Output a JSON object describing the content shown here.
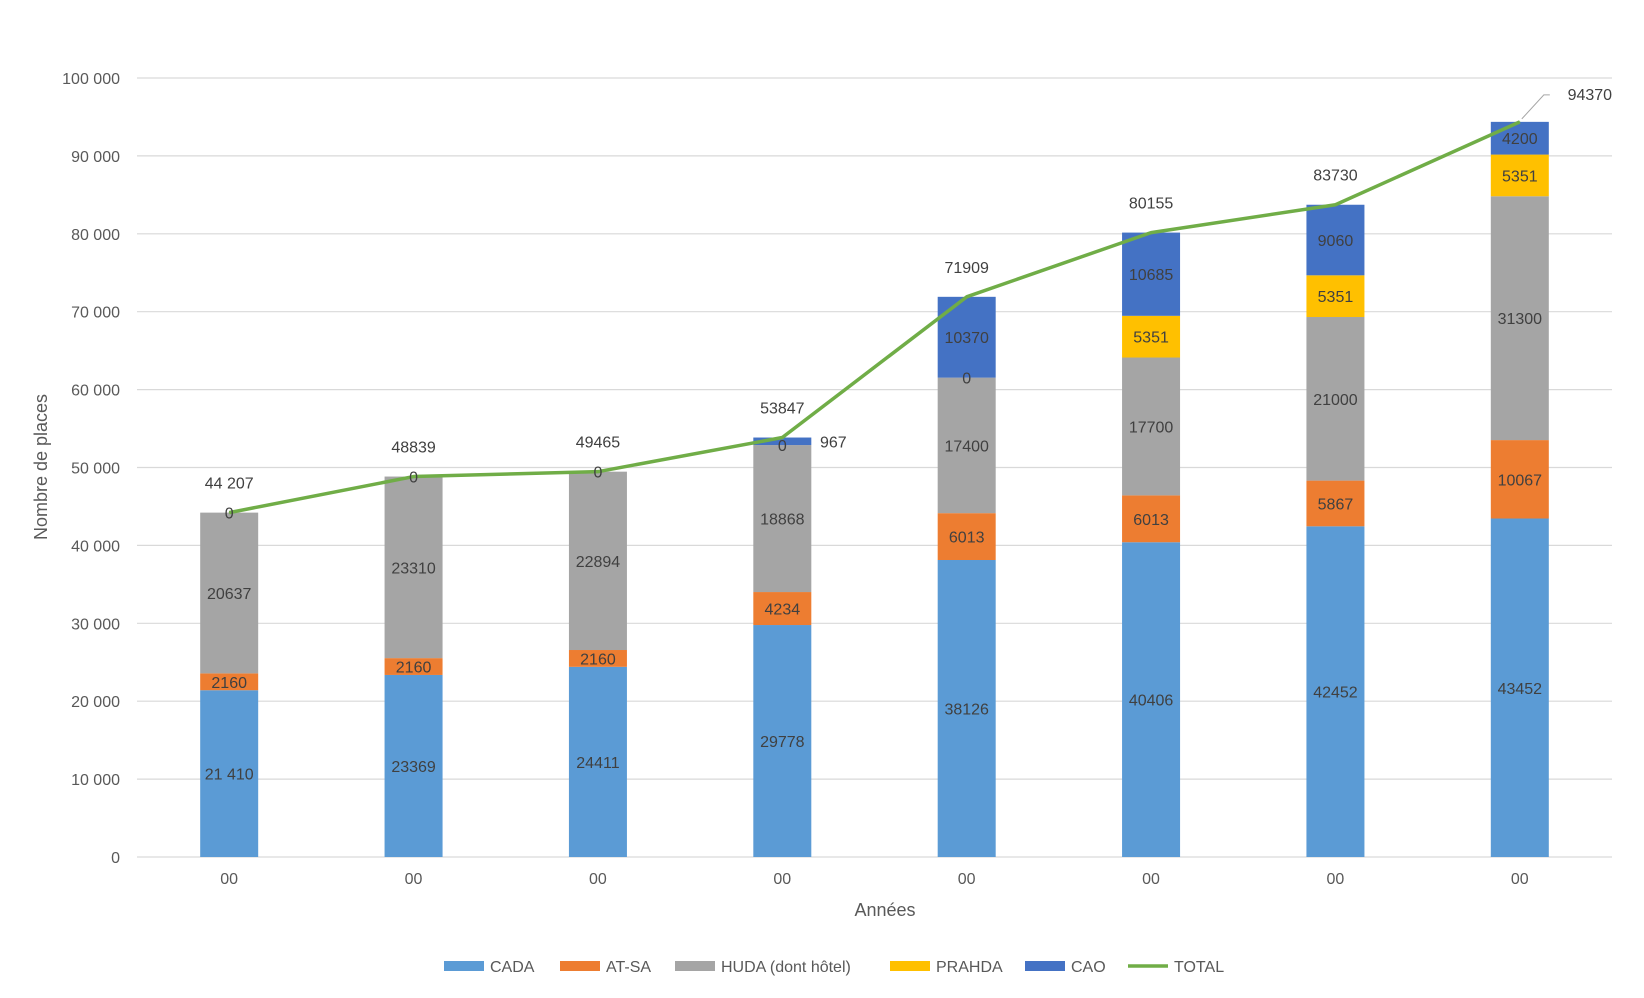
{
  "chart_data": {
    "type": "bar",
    "stacked": true,
    "title": "",
    "xlabel": "Années",
    "ylabel": "Nombre de places",
    "ylim": [
      0,
      100000
    ],
    "y_ticks": [
      0,
      10000,
      20000,
      30000,
      40000,
      50000,
      60000,
      70000,
      80000,
      90000,
      100000
    ],
    "y_tick_labels": [
      "0",
      "10 000",
      "20 000",
      "30 000",
      "40 000",
      "50 000",
      "60 000",
      "70 000",
      "80 000",
      "90 000",
      "100 000"
    ],
    "grid": true,
    "legend_position": "bottom",
    "categories": [
      "00",
      "00",
      "00",
      "00",
      "00",
      "00",
      "00",
      "00"
    ],
    "series": [
      {
        "name": "CADA",
        "color": "#5B9BD5",
        "values": [
          21410,
          23369,
          24411,
          29778,
          38126,
          40406,
          42452,
          43452
        ],
        "labels": [
          "21 410",
          "23369",
          "24411",
          "29778",
          "38126",
          "40406",
          "42452",
          "43452"
        ]
      },
      {
        "name": "AT-SA",
        "color": "#ED7D31",
        "values": [
          2160,
          2160,
          2160,
          4234,
          6013,
          6013,
          5867,
          10067
        ],
        "labels": [
          "2160",
          "2160",
          "2160",
          "4234",
          "6013",
          "6013",
          "5867",
          "10067"
        ]
      },
      {
        "name": "HUDA (dont hôtel)",
        "color": "#A5A5A5",
        "values": [
          20637,
          23310,
          22894,
          18868,
          17400,
          17700,
          21000,
          31300
        ],
        "labels": [
          "20637",
          "23310",
          "22894",
          "18868",
          "17400",
          "17700",
          "21000",
          "31300"
        ]
      },
      {
        "name": "PRAHDA",
        "color": "#FFC000",
        "values": [
          0,
          0,
          0,
          0,
          0,
          5351,
          5351,
          5351
        ],
        "labels": [
          "0",
          "0",
          "0",
          "0",
          "0",
          "5351",
          "5351",
          "5351"
        ]
      },
      {
        "name": "CAO",
        "color": "#4472C4",
        "values": [
          0,
          0,
          0,
          967,
          10370,
          10685,
          9060,
          4200
        ],
        "labels": [
          "",
          "",
          "",
          "967",
          "10370",
          "10685",
          "9060",
          "4200"
        ]
      }
    ],
    "line_series": {
      "name": "TOTAL",
      "color": "#70AD47",
      "values": [
        44207,
        48839,
        49465,
        53847,
        71909,
        80155,
        83730,
        94370
      ],
      "labels": [
        "44 207",
        "48839",
        "49465",
        "53847",
        "71909",
        "80155",
        "83730",
        "94370"
      ]
    }
  }
}
